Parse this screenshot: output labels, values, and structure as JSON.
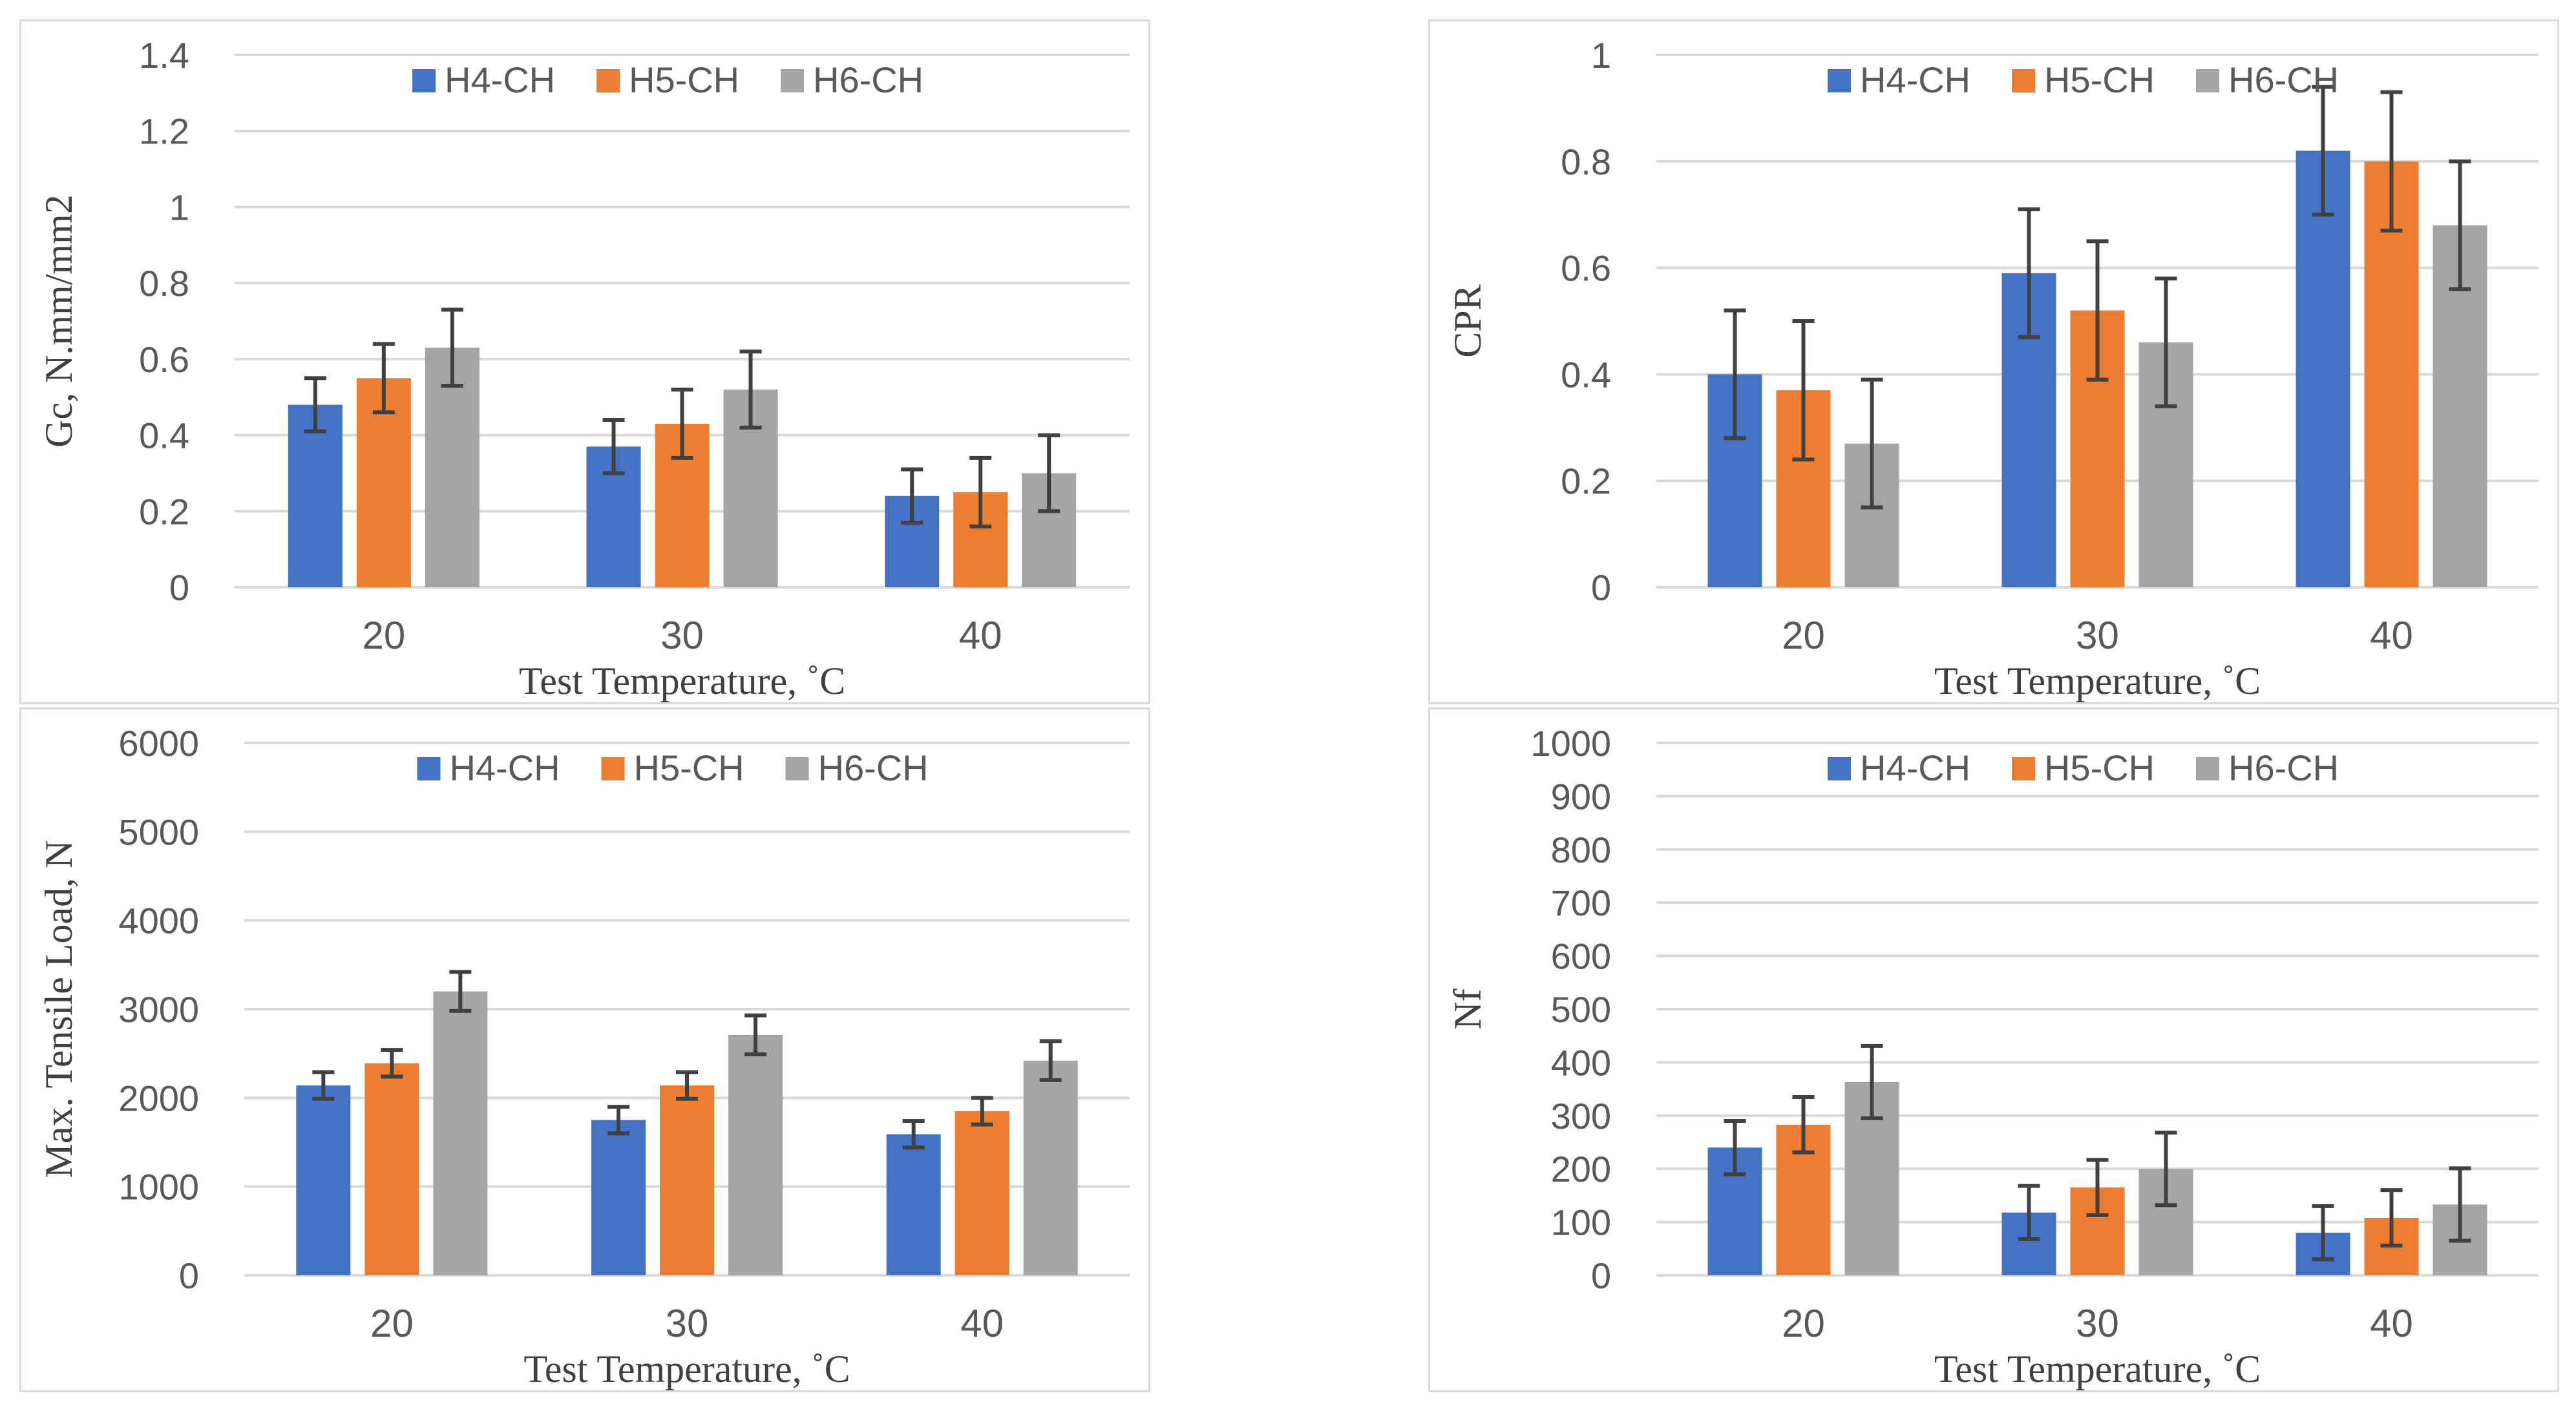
{
  "figure": {
    "colors": {
      "H4-CH": "#4472c4",
      "H5-CH": "#ed7d31",
      "H6-CH": "#a5a5a5",
      "grid": "#d9d9d9",
      "error": "#404040"
    }
  },
  "chart_data": [
    {
      "type": "bar",
      "position": "top-left",
      "title": "",
      "xlabel": "Test Temperature, ˚C",
      "ylabel": "Gc, N.mm/mm2",
      "categories": [
        "20",
        "30",
        "40"
      ],
      "ylim": [
        0,
        1.4
      ],
      "yticks": [
        0,
        0.2,
        0.4,
        0.6,
        0.8,
        1,
        1.2,
        1.4
      ],
      "legend": "top-center",
      "grid": true,
      "series": [
        {
          "name": "H4-CH",
          "values": [
            0.48,
            0.37,
            0.24
          ],
          "errors": [
            0.07,
            0.07,
            0.07
          ]
        },
        {
          "name": "H5-CH",
          "values": [
            0.55,
            0.43,
            0.25
          ],
          "errors": [
            0.09,
            0.09,
            0.09
          ]
        },
        {
          "name": "H6-CH",
          "values": [
            0.63,
            0.52,
            0.3
          ],
          "errors": [
            0.1,
            0.1,
            0.1
          ]
        }
      ]
    },
    {
      "type": "bar",
      "position": "top-right",
      "title": "",
      "xlabel": "Test Temperature, ˚C",
      "ylabel": "CPR",
      "categories": [
        "20",
        "30",
        "40"
      ],
      "ylim": [
        0,
        1
      ],
      "yticks": [
        0,
        0.2,
        0.4,
        0.6,
        0.8,
        1
      ],
      "legend": "top-center",
      "grid": true,
      "series": [
        {
          "name": "H4-CH",
          "values": [
            0.4,
            0.59,
            0.82
          ],
          "errors": [
            0.12,
            0.12,
            0.12
          ]
        },
        {
          "name": "H5-CH",
          "values": [
            0.37,
            0.52,
            0.8
          ],
          "errors": [
            0.13,
            0.13,
            0.13
          ]
        },
        {
          "name": "H6-CH",
          "values": [
            0.27,
            0.46,
            0.68
          ],
          "errors": [
            0.12,
            0.12,
            0.12
          ]
        }
      ]
    },
    {
      "type": "bar",
      "position": "bottom-left",
      "title": "",
      "xlabel": "Test Temperature, ˚C",
      "ylabel": "Max. Tensile Load, N",
      "categories": [
        "20",
        "30",
        "40"
      ],
      "ylim": [
        0,
        6000
      ],
      "yticks": [
        0,
        1000,
        2000,
        3000,
        4000,
        5000,
        6000
      ],
      "legend": "top-center",
      "grid": true,
      "series": [
        {
          "name": "H4-CH",
          "values": [
            2140,
            1750,
            1590
          ],
          "errors": [
            150,
            150,
            150
          ]
        },
        {
          "name": "H5-CH",
          "values": [
            2390,
            2140,
            1850
          ],
          "errors": [
            150,
            150,
            150
          ]
        },
        {
          "name": "H6-CH",
          "values": [
            3200,
            2710,
            2420
          ],
          "errors": [
            220,
            220,
            220
          ]
        }
      ]
    },
    {
      "type": "bar",
      "position": "bottom-right",
      "title": "",
      "xlabel": "Test Temperature, ˚C",
      "ylabel": "Nf",
      "categories": [
        "20",
        "30",
        "40"
      ],
      "ylim": [
        0,
        1000
      ],
      "yticks": [
        0,
        100,
        200,
        300,
        400,
        500,
        600,
        700,
        800,
        900,
        1000
      ],
      "legend": "top-center",
      "grid": true,
      "series": [
        {
          "name": "H4-CH",
          "values": [
            240,
            118,
            80
          ],
          "errors": [
            50,
            50,
            50
          ]
        },
        {
          "name": "H5-CH",
          "values": [
            283,
            165,
            108
          ],
          "errors": [
            52,
            52,
            52
          ]
        },
        {
          "name": "H6-CH",
          "values": [
            363,
            200,
            133
          ],
          "errors": [
            68,
            68,
            68
          ]
        }
      ]
    }
  ]
}
